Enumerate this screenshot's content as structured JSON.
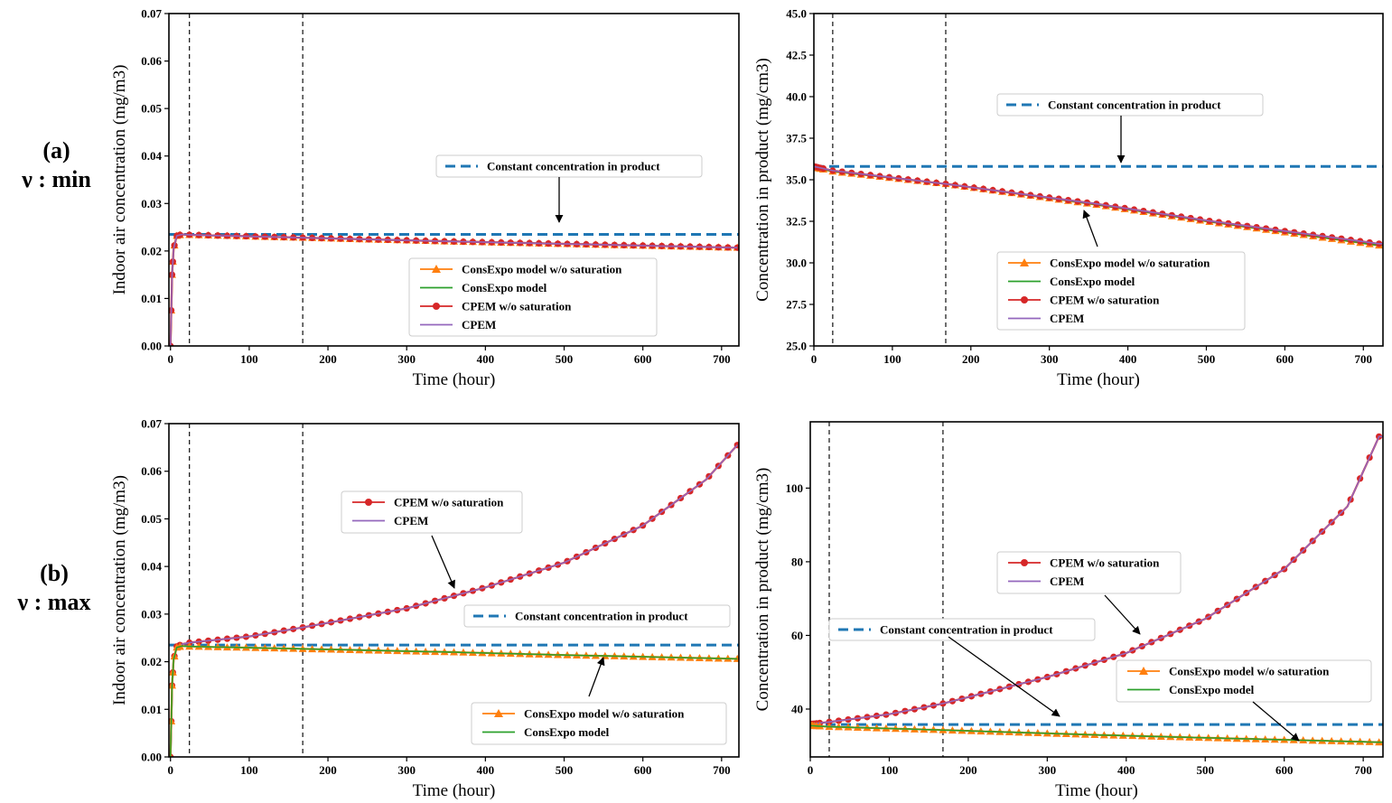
{
  "panel_labels": [
    {
      "tag": "(a)",
      "nu": "ν : min"
    },
    {
      "tag": "(b)",
      "nu": "ν : max"
    }
  ],
  "colors": {
    "consexpo_wo": "#ff7f0e",
    "consexpo": "#2ca02c",
    "cpem_wo": "#d62728",
    "cpem": "#9467bd",
    "constant": "#1f77b4"
  },
  "chart_data": [
    {
      "id": "a-air",
      "type": "line",
      "xlabel": "Time (hour)",
      "ylabel": "Indoor air concentration (mg/m3)",
      "xlim": [
        -2,
        722
      ],
      "ylim": [
        0,
        0.07
      ],
      "xticks": [
        0,
        100,
        200,
        300,
        400,
        500,
        600,
        700
      ],
      "yticks": [
        "0.00",
        "0.01",
        "0.02",
        "0.03",
        "0.04",
        "0.05",
        "0.06",
        "0.07"
      ],
      "vlines": [
        24,
        168
      ],
      "constant": {
        "label": "Constant concentration in product",
        "value": 0.0235
      },
      "series": [
        {
          "name": "ConsExpo model w/o saturation",
          "style": "tri",
          "color": "#ff7f0e",
          "key": [
            [
              0,
              0
            ],
            [
              2,
              0.015
            ],
            [
              4,
              0.0205
            ],
            [
              8,
              0.0232
            ],
            [
              15,
              0.0235
            ],
            [
              24,
              0.0234
            ],
            [
              168,
              0.0228
            ],
            [
              360,
              0.022
            ],
            [
              500,
              0.0215
            ],
            [
              720,
              0.0207
            ]
          ]
        },
        {
          "name": "ConsExpo model",
          "style": "line",
          "color": "#2ca02c",
          "key": [
            [
              0,
              0
            ],
            [
              2,
              0.015
            ],
            [
              4,
              0.0205
            ],
            [
              8,
              0.0232
            ],
            [
              15,
              0.0235
            ],
            [
              24,
              0.0234
            ],
            [
              168,
              0.0228
            ],
            [
              360,
              0.022
            ],
            [
              500,
              0.0215
            ],
            [
              720,
              0.0207
            ]
          ]
        },
        {
          "name": "CPEM w/o saturation",
          "style": "dot",
          "color": "#d62728",
          "key": [
            [
              0,
              0
            ],
            [
              2,
              0.015
            ],
            [
              4,
              0.0205
            ],
            [
              8,
              0.0232
            ],
            [
              15,
              0.0235
            ],
            [
              24,
              0.0234
            ],
            [
              168,
              0.0228
            ],
            [
              360,
              0.022
            ],
            [
              500,
              0.0215
            ],
            [
              720,
              0.0207
            ]
          ]
        },
        {
          "name": "CPEM",
          "style": "line",
          "color": "#9467bd",
          "key": [
            [
              0,
              0
            ],
            [
              2,
              0.015
            ],
            [
              4,
              0.0205
            ],
            [
              8,
              0.0232
            ],
            [
              15,
              0.0235
            ],
            [
              24,
              0.0234
            ],
            [
              168,
              0.0228
            ],
            [
              360,
              0.022
            ],
            [
              500,
              0.0215
            ],
            [
              720,
              0.0207
            ]
          ]
        }
      ]
    },
    {
      "id": "a-prod",
      "type": "line",
      "xlabel": "Time (hour)",
      "ylabel": "Concentration in product (mg/cm3)",
      "xlim": [
        0,
        725
      ],
      "ylim": [
        25,
        45
      ],
      "xticks": [
        0,
        100,
        200,
        300,
        400,
        500,
        600,
        700
      ],
      "yticks": [
        "25.0",
        "27.5",
        "30.0",
        "32.5",
        "35.0",
        "37.5",
        "40.0",
        "42.5",
        "45.0"
      ],
      "vlines": [
        24,
        168
      ],
      "constant": {
        "label": "Constant concentration in product",
        "value": 35.8
      },
      "series": [
        {
          "name": "ConsExpo model w/o saturation",
          "style": "tri",
          "color": "#ff7f0e",
          "key": [
            [
              0,
              35.75
            ],
            [
              24,
              35.5
            ],
            [
              168,
              34.75
            ],
            [
              360,
              33.5
            ],
            [
              500,
              32.5
            ],
            [
              720,
              31.05
            ]
          ]
        },
        {
          "name": "ConsExpo model",
          "style": "line",
          "color": "#2ca02c",
          "key": [
            [
              0,
              35.75
            ],
            [
              24,
              35.5
            ],
            [
              168,
              34.75
            ],
            [
              360,
              33.5
            ],
            [
              500,
              32.5
            ],
            [
              720,
              31.05
            ]
          ]
        },
        {
          "name": "CPEM w/o saturation",
          "style": "dot",
          "color": "#d62728",
          "key": [
            [
              0,
              35.8
            ],
            [
              24,
              35.55
            ],
            [
              168,
              34.75
            ],
            [
              360,
              33.55
            ],
            [
              500,
              32.55
            ],
            [
              720,
              31.15
            ]
          ]
        },
        {
          "name": "CPEM",
          "style": "line",
          "color": "#9467bd",
          "key": [
            [
              0,
              35.8
            ],
            [
              24,
              35.55
            ],
            [
              168,
              34.75
            ],
            [
              360,
              33.55
            ],
            [
              500,
              32.55
            ],
            [
              720,
              31.15
            ]
          ]
        }
      ]
    },
    {
      "id": "b-air",
      "type": "line",
      "xlabel": "Time (hour)",
      "ylabel": "Indoor air concentration (mg/m3)",
      "xlim": [
        -2,
        722
      ],
      "ylim": [
        0,
        0.07
      ],
      "xticks": [
        0,
        100,
        200,
        300,
        400,
        500,
        600,
        700
      ],
      "yticks": [
        "0.00",
        "0.01",
        "0.02",
        "0.03",
        "0.04",
        "0.05",
        "0.06",
        "0.07"
      ],
      "vlines": [
        24,
        168
      ],
      "constant": {
        "label": "Constant concentration in product",
        "value": 0.0235
      },
      "series": [
        {
          "name": "CPEM w/o saturation",
          "style": "dot",
          "color": "#d62728",
          "key": [
            [
              0,
              0
            ],
            [
              2,
              0.015
            ],
            [
              4,
              0.0205
            ],
            [
              8,
              0.0232
            ],
            [
              15,
              0.0237
            ],
            [
              24,
              0.024
            ],
            [
              100,
              0.0253
            ],
            [
              168,
              0.0272
            ],
            [
              300,
              0.0312
            ],
            [
              400,
              0.0356
            ],
            [
              500,
              0.0408
            ],
            [
              600,
              0.0486
            ],
            [
              680,
              0.0582
            ],
            [
              720,
              0.0655
            ]
          ]
        },
        {
          "name": "CPEM",
          "style": "line",
          "color": "#9467bd",
          "key": [
            [
              0,
              0
            ],
            [
              2,
              0.015
            ],
            [
              4,
              0.0205
            ],
            [
              8,
              0.0232
            ],
            [
              15,
              0.0237
            ],
            [
              24,
              0.024
            ],
            [
              100,
              0.0253
            ],
            [
              168,
              0.0272
            ],
            [
              300,
              0.0312
            ],
            [
              400,
              0.0356
            ],
            [
              500,
              0.0408
            ],
            [
              600,
              0.0486
            ],
            [
              680,
              0.0582
            ],
            [
              720,
              0.0655
            ]
          ]
        },
        {
          "name": "ConsExpo model w/o saturation",
          "style": "tri",
          "color": "#ff7f0e",
          "key": [
            [
              0,
              0
            ],
            [
              2,
              0.015
            ],
            [
              4,
              0.0205
            ],
            [
              8,
              0.023
            ],
            [
              15,
              0.0233
            ],
            [
              24,
              0.0232
            ],
            [
              168,
              0.0227
            ],
            [
              360,
              0.022
            ],
            [
              500,
              0.0214
            ],
            [
              720,
              0.0206
            ]
          ]
        },
        {
          "name": "ConsExpo model",
          "style": "line",
          "color": "#2ca02c",
          "key": [
            [
              0,
              0
            ],
            [
              2,
              0.015
            ],
            [
              4,
              0.0205
            ],
            [
              8,
              0.023
            ],
            [
              15,
              0.0233
            ],
            [
              24,
              0.0232
            ],
            [
              168,
              0.0227
            ],
            [
              360,
              0.022
            ],
            [
              500,
              0.0214
            ],
            [
              720,
              0.0206
            ]
          ]
        }
      ]
    },
    {
      "id": "b-prod",
      "type": "line",
      "xlabel": "Time (hour)",
      "ylabel": "Concentration in product (mg/cm3)",
      "xlim": [
        0,
        725
      ],
      "ylim": [
        27,
        118
      ],
      "xticks": [
        0,
        100,
        200,
        300,
        400,
        500,
        600,
        700
      ],
      "yticks": [
        "40",
        "60",
        "80",
        "100"
      ],
      "vlines": [
        24,
        168
      ],
      "constant": {
        "label": "Constant concentration in product",
        "value": 35.8
      },
      "series": [
        {
          "name": "CPEM w/o saturation",
          "style": "dot",
          "color": "#d62728",
          "key": [
            [
              0,
              35.9
            ],
            [
              24,
              36.5
            ],
            [
              100,
              38.6
            ],
            [
              168,
              41.5
            ],
            [
              300,
              48.7
            ],
            [
              400,
              55.2
            ],
            [
              500,
              64.5
            ],
            [
              600,
              78
            ],
            [
              680,
              95
            ],
            [
              720,
              114
            ]
          ]
        },
        {
          "name": "CPEM",
          "style": "line",
          "color": "#9467bd",
          "key": [
            [
              0,
              35.9
            ],
            [
              24,
              36.5
            ],
            [
              100,
              38.6
            ],
            [
              168,
              41.5
            ],
            [
              300,
              48.7
            ],
            [
              400,
              55.2
            ],
            [
              500,
              64.5
            ],
            [
              600,
              78
            ],
            [
              680,
              95
            ],
            [
              720,
              114
            ]
          ]
        },
        {
          "name": "ConsExpo model w/o saturation",
          "style": "tri",
          "color": "#ff7f0e",
          "key": [
            [
              0,
              35.5
            ],
            [
              24,
              35.2
            ],
            [
              168,
              34.3
            ],
            [
              360,
              33
            ],
            [
              500,
              32.2
            ],
            [
              720,
              31
            ]
          ]
        },
        {
          "name": "ConsExpo model",
          "style": "line",
          "color": "#2ca02c",
          "key": [
            [
              0,
              35.5
            ],
            [
              24,
              35.2
            ],
            [
              168,
              34.3
            ],
            [
              360,
              33
            ],
            [
              500,
              32.2
            ],
            [
              720,
              31
            ]
          ]
        }
      ]
    }
  ]
}
